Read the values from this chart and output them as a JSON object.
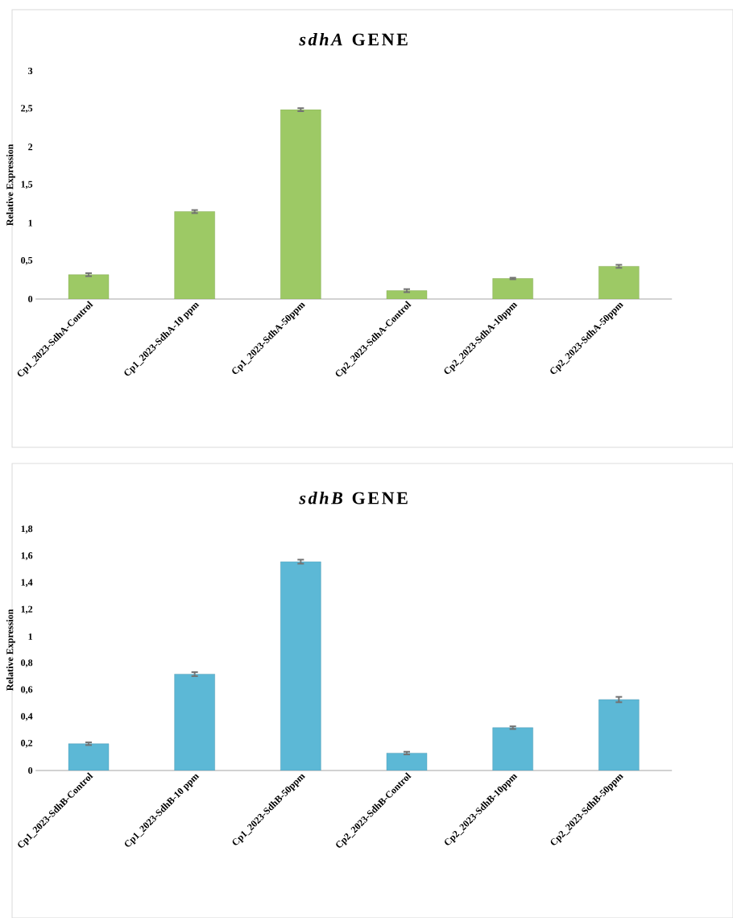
{
  "chart_data": [
    {
      "type": "bar",
      "title": "*sdhA* GENE",
      "ylabel": "Relative Expression",
      "categories": [
        "Cp1_2023-SdhA-Control",
        "Cp1_2023-SdhA-10 ppm",
        "Cp1_2023-SdhA-50ppm",
        "Cp2_2023-SdhA-Control",
        "Cp2_2023-SdhA-10ppm",
        "Cp2_2023-SdhA-50ppm"
      ],
      "values": [
        0.32,
        1.15,
        2.49,
        0.11,
        0.27,
        0.43
      ],
      "errors": [
        0.02,
        0.02,
        0.02,
        0.02,
        0.01,
        0.02
      ],
      "color": "#9dc965",
      "ylim": [
        0,
        3
      ],
      "yticks": [
        0,
        {
          "value": 0.5,
          "label": "0,5"
        },
        1,
        {
          "value": 1.5,
          "label": "1,5"
        },
        2,
        {
          "value": 2.5,
          "label": "2,5"
        },
        3
      ]
    },
    {
      "type": "bar",
      "title": "*sdhB* GENE",
      "ylabel": "Relative Expression",
      "categories": [
        "Cp1_2023-SdhB-Control",
        "Cp1_2023-SdhB-10 ppm",
        "Cp1_2023-SdhB-50ppm",
        "Cp2_2023-SdhB-Control",
        "Cp2_2023-SdhB-10ppm",
        "Cp2_2023-SdhB-50ppm"
      ],
      "values": [
        0.2,
        0.72,
        1.56,
        0.13,
        0.32,
        0.53
      ],
      "errors": [
        0.01,
        0.015,
        0.015,
        0.01,
        0.01,
        0.02
      ],
      "color": "#5cb8d6",
      "ylim": [
        0,
        1.8
      ],
      "yticks": [
        0,
        {
          "value": 0.2,
          "label": "0,2"
        },
        {
          "value": 0.4,
          "label": "0,4"
        },
        {
          "value": 0.6,
          "label": "0,6"
        },
        {
          "value": 0.8,
          "label": "0,8"
        },
        1,
        {
          "value": 1.2,
          "label": "1,2"
        },
        {
          "value": 1.4,
          "label": "1,4"
        },
        {
          "value": 1.6,
          "label": "1,6"
        },
        {
          "value": 1.8,
          "label": "1,8"
        }
      ]
    }
  ]
}
